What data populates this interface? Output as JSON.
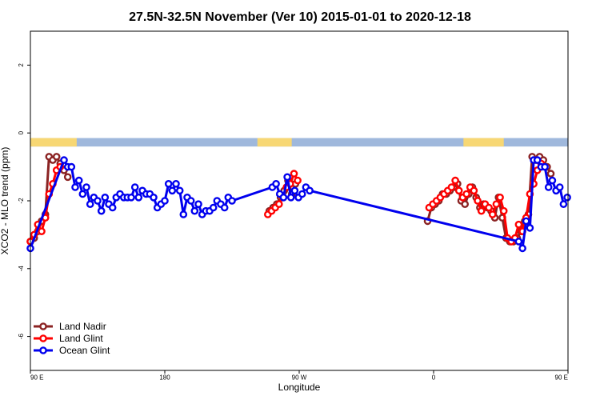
{
  "chart_data": {
    "type": "line",
    "title": "27.5N-32.5N November (Ver 10)   2015-01-01 to 2020-12-18",
    "xlabel": "Longitude",
    "ylabel": "XCO2 - MLO trend (ppm)",
    "xlim": [
      90,
      450
    ],
    "ylim": [
      -7,
      3
    ],
    "x_ticks": [
      {
        "value": 90,
        "label": "90 E"
      },
      {
        "value": 180,
        "label": "180"
      },
      {
        "value": 270,
        "label": "90 W"
      },
      {
        "value": 360,
        "label": "0"
      },
      {
        "value": 450,
        "label": "90 E"
      },
      {
        "value": 540,
        "label": "180"
      }
    ],
    "y_ticks": [
      {
        "value": 2,
        "label": "2"
      },
      {
        "value": 0,
        "label": "0"
      },
      {
        "value": -2,
        "label": "-2"
      },
      {
        "value": -4,
        "label": "-4"
      },
      {
        "value": -6,
        "label": "-6"
      }
    ],
    "grid": false,
    "legend_position": "bottom-left",
    "land_ocean_strip": {
      "y_range": [
        -0.4,
        -0.15
      ],
      "land_color": "#f7d774",
      "ocean_color": "#9fb8dc",
      "land_segments": [
        [
          90,
          121
        ],
        [
          242,
          265
        ],
        [
          380,
          407
        ],
        [
          485,
          502
        ]
      ]
    },
    "series": [
      {
        "name": "Land Nadir",
        "color": "#8b2323",
        "points": [
          [
            90,
            -3.2
          ],
          [
            92.5,
            -3.1
          ],
          [
            95,
            -2.9
          ],
          [
            97.5,
            -2.6
          ],
          [
            100,
            -2.4
          ],
          [
            102.5,
            -0.7
          ],
          [
            105,
            -0.8
          ],
          [
            107.5,
            -0.7
          ],
          [
            110,
            -0.9
          ],
          [
            112.5,
            -1.1
          ],
          [
            115,
            -1.3
          ],
          null,
          [
            250,
            -2.3
          ],
          [
            252.5,
            -2.2
          ],
          [
            255,
            -2.1
          ],
          [
            257.5,
            -1.9
          ],
          [
            260,
            -1.7
          ],
          [
            262.5,
            -1.4
          ],
          [
            265,
            -1.8
          ],
          [
            267.5,
            -1.5
          ],
          null,
          [
            356,
            -2.6
          ],
          [
            358.5,
            -2.2
          ],
          [
            361,
            -2.1
          ],
          [
            363.5,
            -2.0
          ],
          [
            366,
            -1.8
          ],
          [
            368.5,
            -1.8
          ],
          [
            371,
            -1.7
          ],
          [
            373.5,
            -1.6
          ],
          [
            376,
            -1.5
          ],
          [
            378.5,
            -2.0
          ],
          [
            381,
            -2.1
          ],
          [
            383.5,
            -1.8
          ],
          [
            386,
            -1.6
          ],
          [
            388.5,
            -1.9
          ],
          [
            391,
            -2.2
          ],
          [
            393.5,
            -2.1
          ],
          [
            396,
            -2.2
          ],
          [
            398.5,
            -2.3
          ],
          [
            401,
            -2.5
          ],
          [
            403.5,
            -1.9
          ],
          [
            406,
            -2.5
          ],
          [
            408.5,
            -3.1
          ],
          [
            411,
            -3.2
          ],
          [
            413.5,
            -3.2
          ],
          [
            416,
            -3.1
          ],
          [
            418.5,
            -2.9
          ],
          [
            421,
            -2.6
          ],
          [
            423.5,
            -2.4
          ],
          [
            426,
            -0.7
          ],
          [
            428.5,
            -0.8
          ],
          [
            431,
            -0.7
          ],
          [
            433.5,
            -0.8
          ],
          [
            436,
            -1.0
          ],
          [
            438.5,
            -1.2
          ]
        ]
      },
      {
        "name": "Land Glint",
        "color": "#ff0000",
        "points": [
          [
            90,
            -3.2
          ],
          [
            92.5,
            -3.0
          ],
          [
            95,
            -2.7
          ],
          [
            97.5,
            -2.9
          ],
          [
            100,
            -2.5
          ],
          [
            102.5,
            -1.8
          ],
          [
            105,
            -1.5
          ],
          [
            107.5,
            -1.1
          ],
          [
            110,
            -1.0
          ],
          null,
          [
            249,
            -2.4
          ],
          [
            251.5,
            -2.3
          ],
          [
            254,
            -2.2
          ],
          [
            256.5,
            -2.1
          ],
          [
            259,
            -1.9
          ],
          [
            261.5,
            -1.6
          ],
          [
            264,
            -1.5
          ],
          [
            266.5,
            -1.2
          ],
          [
            269,
            -1.4
          ],
          null,
          [
            357,
            -2.2
          ],
          [
            359.5,
            -2.1
          ],
          [
            362,
            -2.0
          ],
          [
            364.5,
            -1.9
          ],
          [
            367,
            -1.8
          ],
          [
            369.5,
            -1.7
          ],
          [
            372,
            -1.6
          ],
          [
            374.5,
            -1.4
          ],
          [
            377,
            -1.7
          ],
          [
            379.5,
            -1.9
          ],
          [
            382,
            -1.8
          ],
          [
            384.5,
            -1.6
          ],
          [
            387,
            -1.7
          ],
          [
            389.5,
            -2.0
          ],
          [
            392,
            -2.3
          ],
          [
            394.5,
            -2.1
          ],
          [
            397,
            -2.2
          ],
          [
            399.5,
            -2.4
          ],
          [
            402,
            -2.1
          ],
          [
            404.5,
            -1.9
          ],
          [
            407,
            -2.3
          ],
          [
            409.5,
            -3.1
          ],
          [
            412,
            -3.2
          ],
          [
            414.5,
            -3.1
          ],
          [
            417,
            -2.7
          ],
          [
            419.5,
            -2.9
          ],
          [
            422,
            -2.5
          ],
          [
            424.5,
            -1.8
          ],
          [
            427,
            -1.5
          ],
          [
            429.5,
            -1.1
          ],
          [
            432,
            -0.9
          ]
        ]
      },
      {
        "name": "Ocean Glint",
        "color": "#0000ee",
        "points": [
          [
            90,
            -3.4
          ],
          [
            112.5,
            -0.8
          ],
          [
            115,
            -1.0
          ],
          [
            117.5,
            -1.0
          ],
          [
            120,
            -1.6
          ],
          [
            122.5,
            -1.4
          ],
          [
            125,
            -1.8
          ],
          [
            127.5,
            -1.6
          ],
          [
            130,
            -2.1
          ],
          [
            132.5,
            -1.9
          ],
          [
            135,
            -2.0
          ],
          [
            137.5,
            -2.3
          ],
          [
            140,
            -1.9
          ],
          [
            142.5,
            -2.1
          ],
          [
            145,
            -2.2
          ],
          [
            147.5,
            -1.9
          ],
          [
            150,
            -1.8
          ],
          [
            152.5,
            -1.9
          ],
          [
            155,
            -1.9
          ],
          [
            157.5,
            -1.9
          ],
          [
            160,
            -1.6
          ],
          [
            162.5,
            -1.9
          ],
          [
            165,
            -1.7
          ],
          [
            167.5,
            -1.8
          ],
          [
            170,
            -1.8
          ],
          [
            172.5,
            -1.9
          ],
          [
            175,
            -2.2
          ],
          [
            177.5,
            -2.1
          ],
          [
            180,
            -2.0
          ],
          [
            182.5,
            -1.5
          ],
          [
            185,
            -1.7
          ],
          [
            187.5,
            -1.5
          ],
          [
            190,
            -1.7
          ],
          [
            192.5,
            -2.4
          ],
          [
            195,
            -1.9
          ],
          [
            197.5,
            -2.0
          ],
          [
            200,
            -2.3
          ],
          [
            202.5,
            -2.1
          ],
          [
            205,
            -2.4
          ],
          [
            207.5,
            -2.3
          ],
          [
            210,
            -2.3
          ],
          [
            212.5,
            -2.2
          ],
          [
            215,
            -2.0
          ],
          [
            217.5,
            -2.1
          ],
          [
            220,
            -2.2
          ],
          [
            222.5,
            -1.9
          ],
          [
            225,
            -2.0
          ],
          [
            252,
            -1.6
          ],
          [
            254.5,
            -1.5
          ],
          [
            257,
            -1.8
          ],
          [
            259.5,
            -1.9
          ],
          [
            262,
            -1.3
          ],
          [
            264.5,
            -1.9
          ],
          [
            267,
            -1.7
          ],
          [
            269.5,
            -1.9
          ],
          [
            272,
            -1.8
          ],
          [
            274.5,
            -1.6
          ],
          [
            277,
            -1.7
          ],
          [
            417,
            -3.2
          ],
          [
            419.5,
            -3.4
          ],
          [
            422,
            -2.6
          ],
          [
            424.5,
            -2.8
          ],
          [
            427,
            -0.8
          ],
          [
            429.5,
            -0.8
          ],
          [
            432,
            -1.0
          ],
          [
            434.5,
            -1.0
          ],
          [
            437,
            -1.6
          ],
          [
            439.5,
            -1.4
          ],
          [
            442,
            -1.7
          ],
          [
            444.5,
            -1.6
          ],
          [
            447,
            -2.1
          ],
          [
            449.5,
            -1.9
          ]
        ]
      }
    ]
  }
}
